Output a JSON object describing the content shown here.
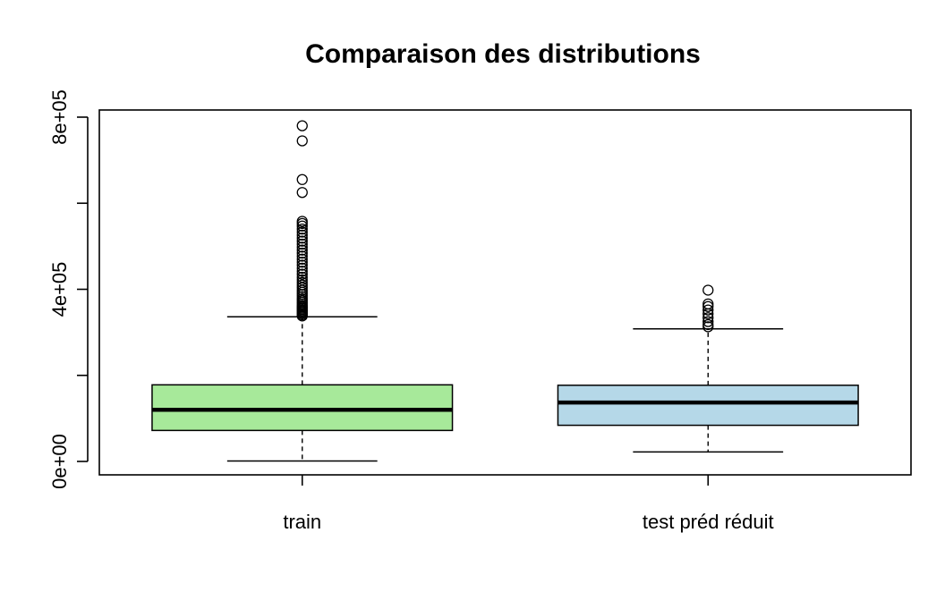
{
  "chart_data": {
    "type": "boxplot",
    "title": "Comparaison des distributions",
    "xlabel": "",
    "ylabel": "",
    "ylim": [
      -30000,
      800000
    ],
    "yticks": [
      0,
      200000,
      400000,
      600000,
      800000
    ],
    "ytick_labels": [
      "0e+00",
      "",
      "4e+05",
      "",
      "8e+05"
    ],
    "grid": false,
    "legend": "none",
    "boxes": [
      {
        "name": "train",
        "color": "#a7e99a",
        "whisker_low": 1000,
        "q1": 72000,
        "median": 120000,
        "q3": 178000,
        "whisker_high": 336000,
        "outliers": [
          338000,
          341000,
          344000,
          347000,
          350000,
          353000,
          356000,
          359000,
          362000,
          366000,
          370000,
          374000,
          378000,
          383000,
          388000,
          393000,
          398000,
          404000,
          410000,
          416000,
          422000,
          428000,
          435000,
          442000,
          449000,
          456000,
          463000,
          470000,
          477000,
          484000,
          491000,
          498000,
          505000,
          512000,
          519000,
          526000,
          533000,
          540000,
          547000,
          553000,
          558000,
          625000,
          655000,
          745000,
          780000
        ]
      },
      {
        "name": "test préd réduit",
        "color": "#b5d8e8",
        "whisker_low": 22000,
        "q1": 84000,
        "median": 137000,
        "q3": 177000,
        "whisker_high": 308000,
        "outliers": [
          313000,
          318000,
          325000,
          334000,
          343000,
          352000,
          360000,
          366000,
          398000
        ]
      }
    ]
  }
}
